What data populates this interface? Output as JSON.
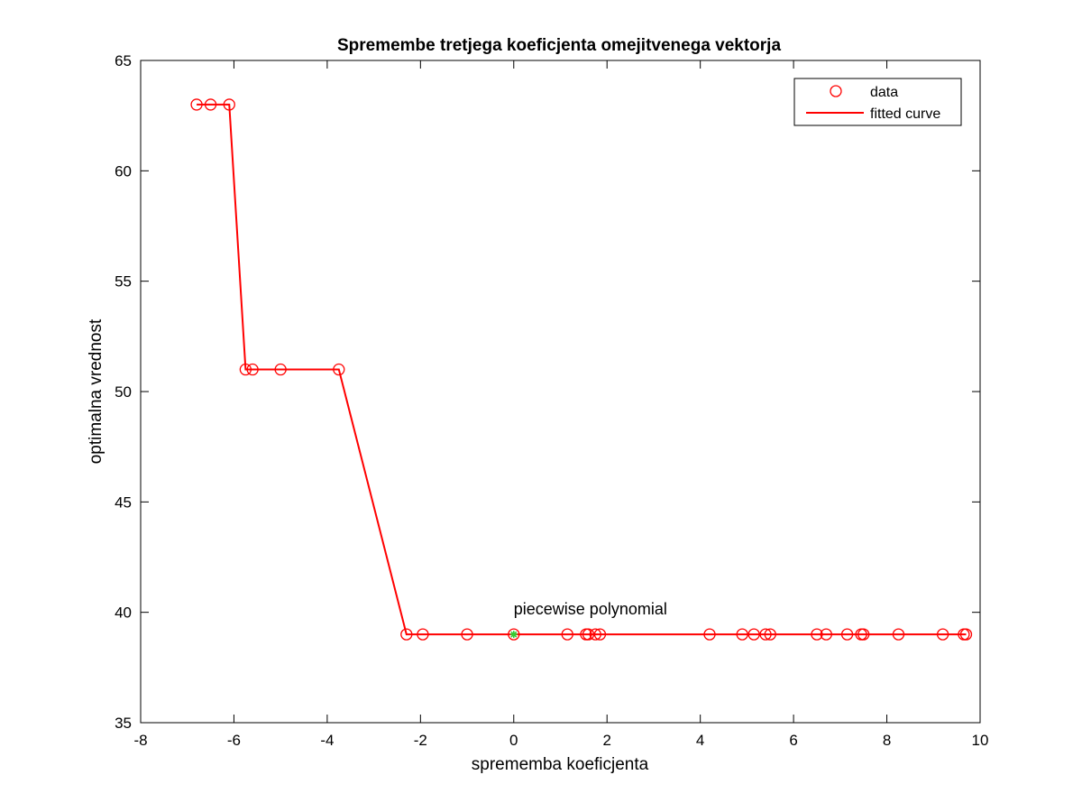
{
  "chart_data": {
    "type": "line",
    "title": "Spremembe tretjega koeficjenta omejitvenega vektorja",
    "xlabel": "sprememba koeficjenta",
    "ylabel": "optimalna vrednost",
    "xlim": [
      -8,
      10
    ],
    "ylim": [
      35,
      65
    ],
    "xticks": [
      -8,
      -6,
      -4,
      -2,
      0,
      2,
      4,
      6,
      8,
      10
    ],
    "yticks": [
      35,
      40,
      45,
      50,
      55,
      60,
      65
    ],
    "grid": false,
    "legend_position": "top-right",
    "colors": {
      "data": "#ff0000",
      "fit": "#ff0000",
      "current": "#33cc33",
      "axes": "#000000"
    },
    "series": [
      {
        "name": "data",
        "marker": "circle",
        "x": [
          -6.8,
          -6.5,
          -6.1,
          -5.75,
          -5.6,
          -5.0,
          -3.75,
          -2.3,
          -1.95,
          -1.0,
          0.0,
          1.15,
          1.55,
          1.6,
          1.75,
          1.85,
          4.2,
          4.9,
          5.15,
          5.4,
          5.5,
          6.5,
          6.7,
          7.15,
          7.45,
          7.5,
          8.25,
          9.2,
          9.65,
          9.7
        ],
        "y": [
          63,
          63,
          63,
          51,
          51,
          51,
          51,
          39,
          39,
          39,
          39,
          39,
          39,
          39,
          39,
          39,
          39,
          39,
          39,
          39,
          39,
          39,
          39,
          39,
          39,
          39,
          39,
          39,
          39,
          39
        ]
      },
      {
        "name": "fitted curve",
        "x": [
          -6.8,
          -6.1,
          -5.75,
          -3.75,
          -2.3,
          9.7
        ],
        "y": [
          63,
          63,
          51,
          51,
          39,
          39
        ]
      }
    ],
    "current_point": {
      "x": 0,
      "y": 39
    },
    "annotations": [
      {
        "text": "piecewise polynomial",
        "x": 0,
        "y": 39.9
      }
    ]
  }
}
